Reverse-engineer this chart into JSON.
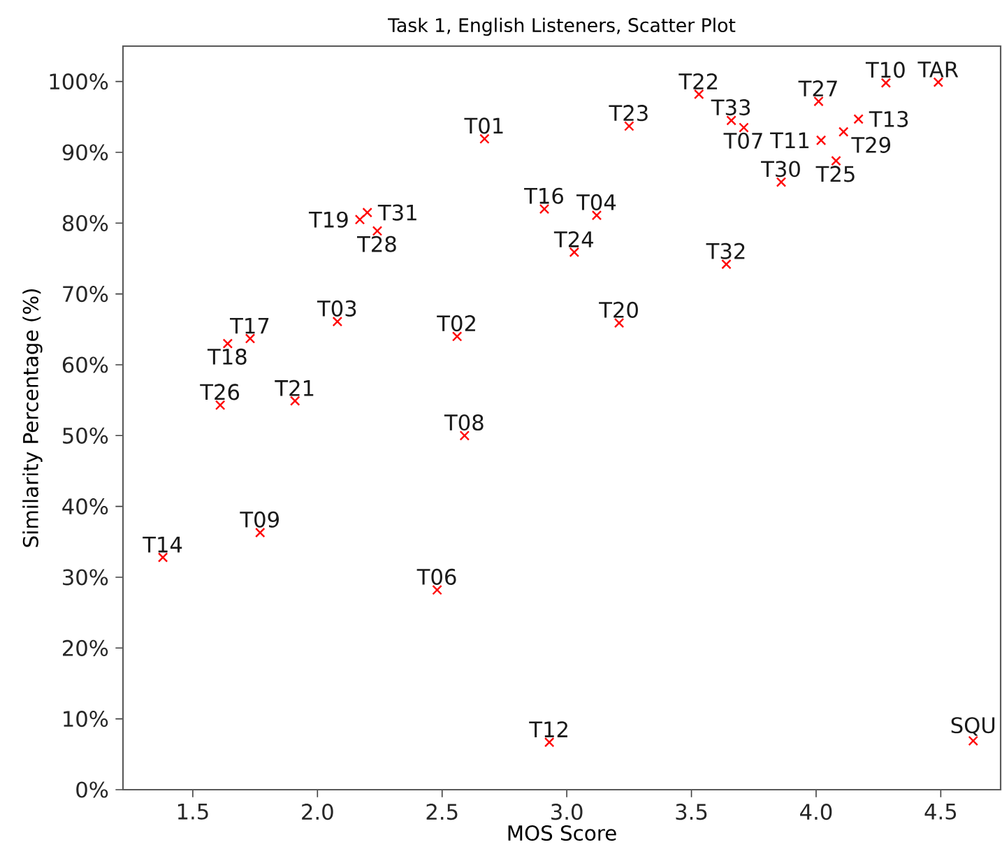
{
  "chart_data": {
    "type": "scatter",
    "title": "Task 1, English Listeners, Scatter Plot",
    "xlabel": "MOS Score",
    "ylabel": "Similarity Percentage (%)",
    "xlim": [
      1.22,
      4.74
    ],
    "ylim": [
      0,
      105
    ],
    "xticks": [
      {
        "value": 1.5,
        "label": "1.5"
      },
      {
        "value": 2.0,
        "label": "2.0"
      },
      {
        "value": 2.5,
        "label": "2.5"
      },
      {
        "value": 3.0,
        "label": "3.0"
      },
      {
        "value": 3.5,
        "label": "3.5"
      },
      {
        "value": 4.0,
        "label": "4.0"
      },
      {
        "value": 4.5,
        "label": "4.5"
      }
    ],
    "yticks": [
      {
        "value": 0,
        "label": "0%"
      },
      {
        "value": 10,
        "label": "10%"
      },
      {
        "value": 20,
        "label": "20%"
      },
      {
        "value": 30,
        "label": "30%"
      },
      {
        "value": 40,
        "label": "40%"
      },
      {
        "value": 50,
        "label": "50%"
      },
      {
        "value": 60,
        "label": "60%"
      },
      {
        "value": 70,
        "label": "70%"
      },
      {
        "value": 80,
        "label": "80%"
      },
      {
        "value": 90,
        "label": "90%"
      },
      {
        "value": 100,
        "label": "100%"
      }
    ],
    "marker": "cross",
    "series": [
      {
        "color": "#ff0000",
        "x": [
          2.67,
          2.17,
          2.2,
          2.24,
          2.08,
          1.64,
          1.73,
          2.56,
          1.61,
          1.91,
          2.59,
          2.91,
          3.53,
          3.25,
          3.66,
          3.71,
          4.01,
          4.28,
          4.49,
          4.17,
          4.11,
          4.02,
          4.08,
          3.86,
          3.12,
          3.03,
          3.64,
          3.21,
          1.38,
          1.77,
          2.48,
          2.93,
          4.63
        ],
        "values": [
          91.9,
          80.5,
          81.5,
          78.9,
          66.1,
          63.0,
          63.7,
          64.0,
          54.3,
          54.9,
          50.0,
          82.0,
          98.2,
          93.7,
          94.5,
          93.5,
          97.2,
          99.8,
          99.9,
          94.7,
          92.9,
          91.7,
          88.8,
          85.8,
          81.1,
          75.9,
          74.2,
          65.9,
          32.8,
          36.3,
          28.2,
          6.7,
          6.9
        ]
      }
    ],
    "annotations": [
      {
        "text": "T01",
        "x": 2.67,
        "y": 91.9
      },
      {
        "text": "T19",
        "x": 2.17,
        "y": 80.5
      },
      {
        "text": "T31",
        "x": 2.2,
        "y": 81.5
      },
      {
        "text": "T28",
        "x": 2.24,
        "y": 78.9
      },
      {
        "text": "T03",
        "x": 2.08,
        "y": 66.1
      },
      {
        "text": "T18",
        "x": 1.64,
        "y": 63.0
      },
      {
        "text": "T17",
        "x": 1.73,
        "y": 63.7
      },
      {
        "text": "T02",
        "x": 2.56,
        "y": 64.0
      },
      {
        "text": "T26",
        "x": 1.61,
        "y": 54.3
      },
      {
        "text": "T21",
        "x": 1.91,
        "y": 54.9
      },
      {
        "text": "T08",
        "x": 2.59,
        "y": 50.0
      },
      {
        "text": "T16",
        "x": 2.91,
        "y": 82.0
      },
      {
        "text": "T22",
        "x": 3.53,
        "y": 98.2
      },
      {
        "text": "T23",
        "x": 3.25,
        "y": 93.7
      },
      {
        "text": "T33",
        "x": 3.66,
        "y": 94.5
      },
      {
        "text": "T07",
        "x": 3.71,
        "y": 93.5
      },
      {
        "text": "T27",
        "x": 4.01,
        "y": 97.2
      },
      {
        "text": "T10",
        "x": 4.28,
        "y": 99.8
      },
      {
        "text": "TAR",
        "x": 4.49,
        "y": 99.9
      },
      {
        "text": "T13",
        "x": 4.17,
        "y": 94.7
      },
      {
        "text": "T29",
        "x": 4.11,
        "y": 92.9
      },
      {
        "text": "T11",
        "x": 4.02,
        "y": 91.7
      },
      {
        "text": "T25",
        "x": 4.08,
        "y": 88.8
      },
      {
        "text": "T30",
        "x": 3.86,
        "y": 85.8
      },
      {
        "text": "T04",
        "x": 3.12,
        "y": 81.1
      },
      {
        "text": "T24",
        "x": 3.03,
        "y": 75.9
      },
      {
        "text": "T32",
        "x": 3.64,
        "y": 74.2
      },
      {
        "text": "T20",
        "x": 3.21,
        "y": 65.9
      },
      {
        "text": "T14",
        "x": 1.38,
        "y": 32.8
      },
      {
        "text": "T09",
        "x": 1.77,
        "y": 36.3
      },
      {
        "text": "T06",
        "x": 2.48,
        "y": 28.2
      },
      {
        "text": "T12",
        "x": 2.93,
        "y": 6.7
      },
      {
        "text": "SQU",
        "x": 4.63,
        "y": 6.9
      }
    ]
  }
}
